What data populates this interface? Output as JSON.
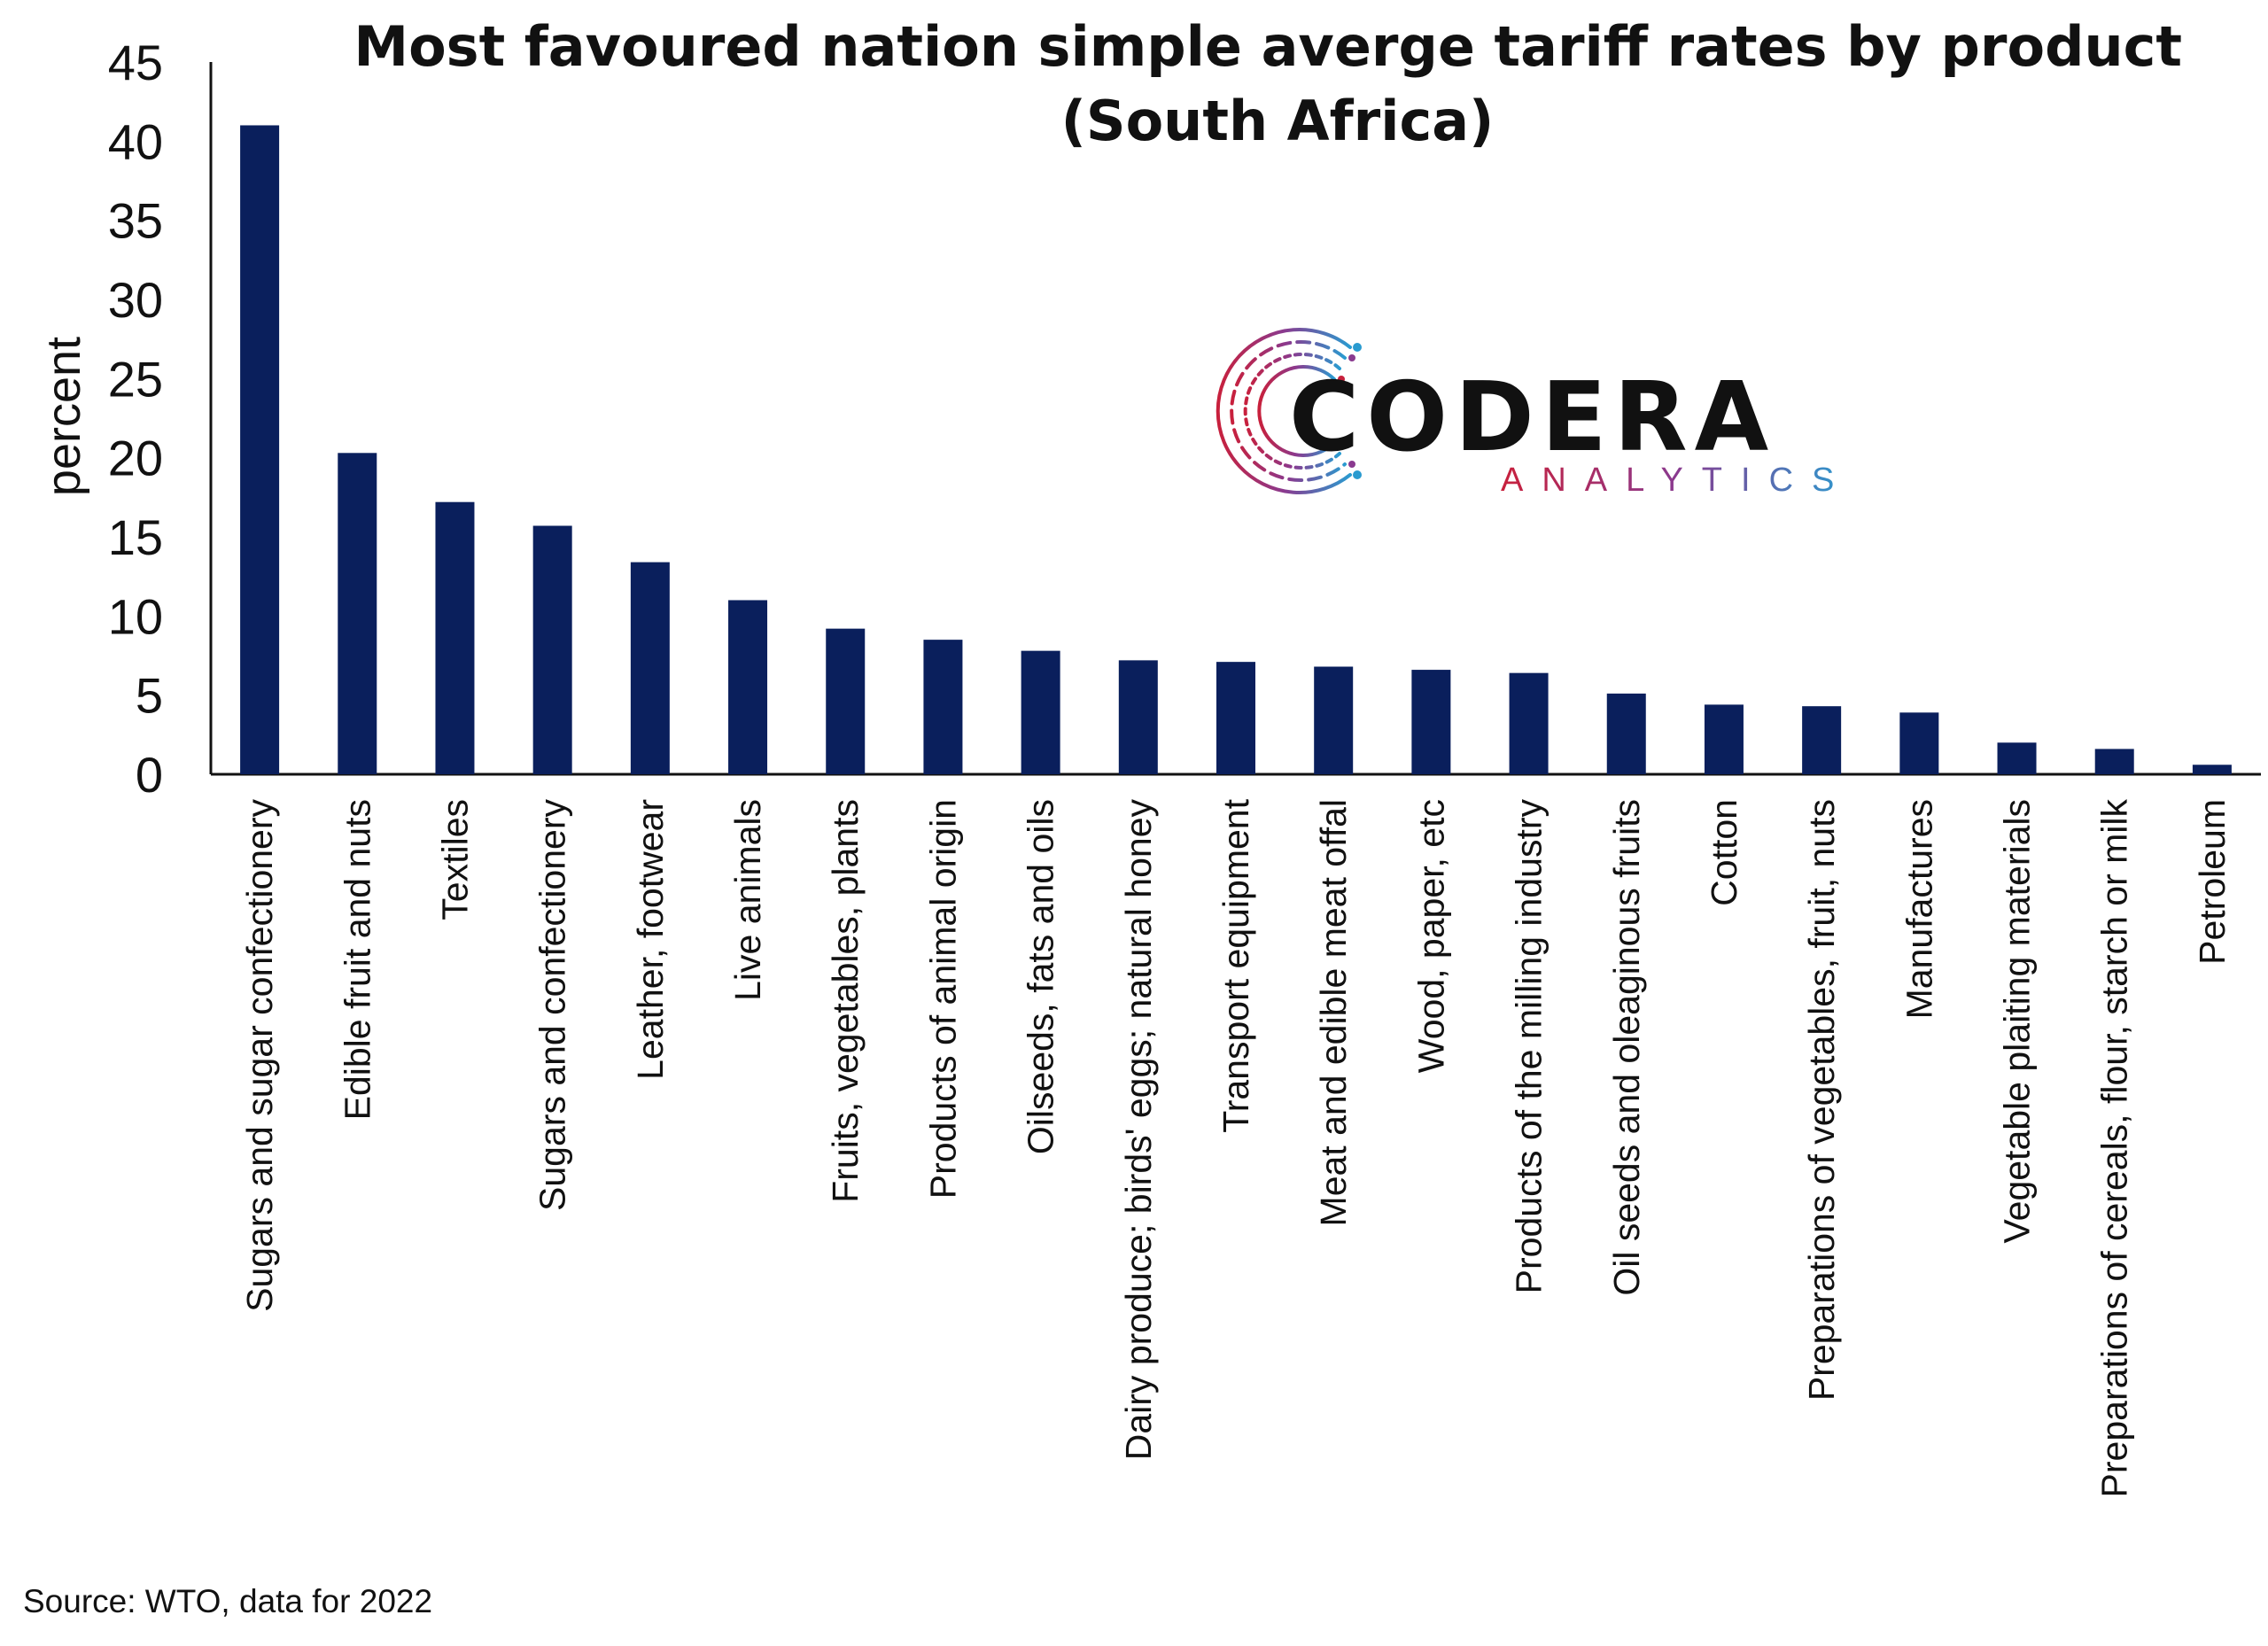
{
  "chart_data": {
    "type": "bar",
    "title": "Most favoured nation simple averge tariff rates by product (South Africa)",
    "title_lines": [
      "Most favoured nation simple averge tariff rates by product",
      "(South Africa)"
    ],
    "xlabel": "",
    "ylabel": "percent",
    "ylim": [
      0,
      45
    ],
    "yticks": [
      0,
      5,
      10,
      15,
      20,
      25,
      30,
      35,
      40,
      45
    ],
    "grid": false,
    "legend": "none",
    "bar_color": "#0a1f5c",
    "categories": [
      "Sugars and sugar confectionery",
      "Edible fruit and nuts",
      "Textiles",
      "Sugars and confectionery",
      "Leather, footwear",
      "Live animals",
      "Fruits, vegetables, plants",
      "Products of animal origin",
      "Oilseeds, fats and oils",
      "Dairy produce; birds' eggs; natural honey",
      "Transport equipment",
      "Meat and edible meat offal",
      "Wood, paper, etc",
      "Products of the milling industry",
      "Oil seeds and oleaginous fruits",
      "Cotton",
      "Preparations of vegetables, fruit, nuts",
      "Manufactures",
      "Vegetable plaiting materials",
      "Preparations of cereals, flour, starch or milk",
      "Petroleum"
    ],
    "values": [
      41.0,
      20.3,
      17.2,
      15.7,
      13.4,
      11.0,
      9.2,
      8.5,
      7.8,
      7.2,
      7.1,
      6.8,
      6.6,
      6.4,
      5.1,
      4.4,
      4.3,
      3.9,
      2.0,
      1.6,
      0.6
    ]
  },
  "source": "Source: WTO, data for 2022",
  "logo": {
    "name": "CODERA",
    "sub": "ANALYTICS",
    "colors": [
      "#c8203c",
      "#8a3a8f",
      "#2a9bd0"
    ]
  }
}
